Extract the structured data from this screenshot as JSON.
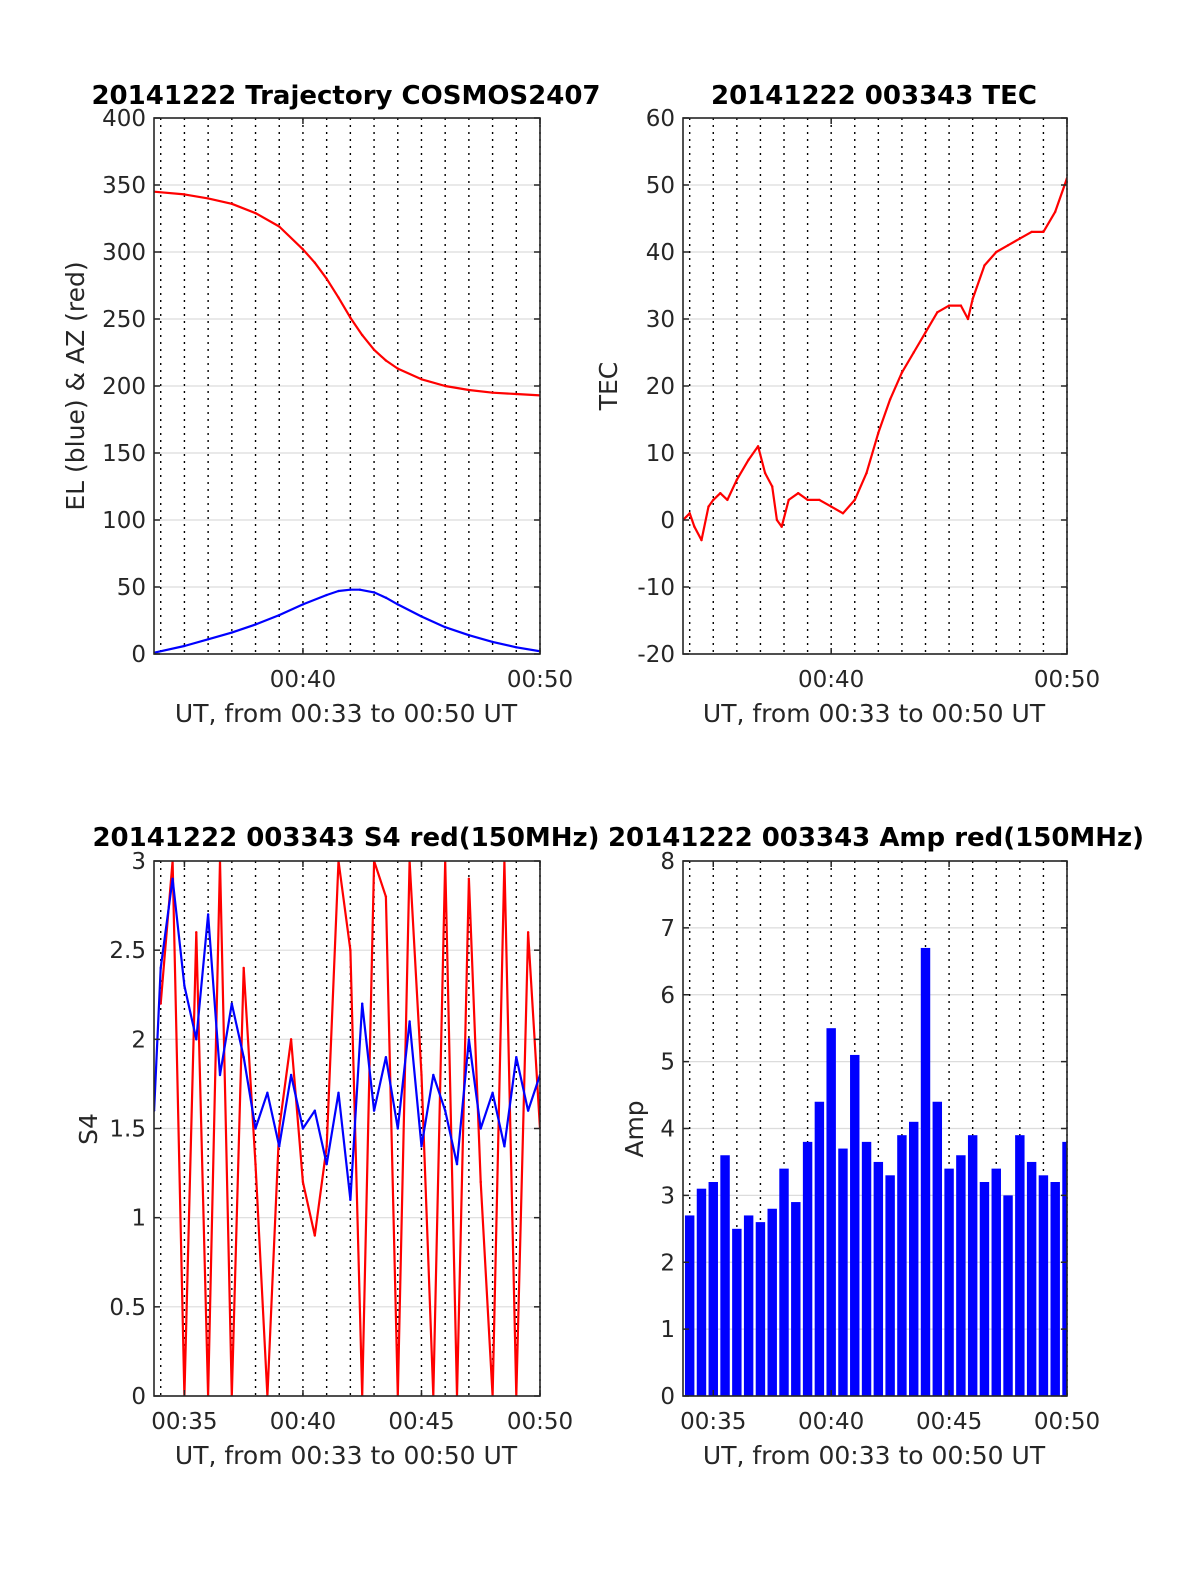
{
  "colors": {
    "red": "#ff0000",
    "blue": "#0000ff",
    "grid": "#dcdcdc",
    "axis": "#262626"
  },
  "chart_data": [
    {
      "type": "line",
      "title": "20141222 Trajectory COSMOS2407",
      "xlabel": "UT, from 00:33 to 00:50 UT",
      "ylabel": "EL (blue) & AZ (red)",
      "xlim": [
        "00:33:43",
        "00:50:00"
      ],
      "ylim": [
        0,
        400
      ],
      "yticks": [
        0,
        50,
        100,
        150,
        200,
        250,
        300,
        350,
        400
      ],
      "ytick_labels": [
        "0",
        "50",
        "100",
        "150",
        "200",
        "250",
        "300",
        "350",
        "400"
      ],
      "xticks": [
        "00:40",
        "00:50"
      ],
      "xtick_labels": [
        "00:40",
        "00:50"
      ],
      "x_units": "minutes after 00:00 UT",
      "grid": true,
      "series": [
        {
          "color": "#ff0000",
          "x": [
            33.72,
            35,
            36,
            37,
            38,
            39,
            40,
            40.5,
            41,
            41.5,
            42,
            42.5,
            43,
            43.5,
            44,
            45,
            46,
            47,
            48,
            49,
            50
          ],
          "values": [
            345,
            343,
            340,
            336,
            329,
            319,
            302,
            292,
            280,
            266,
            251,
            238,
            227,
            219,
            213,
            205,
            200,
            197,
            195,
            194,
            193
          ]
        },
        {
          "color": "#0000ff",
          "x": [
            33.72,
            35,
            36,
            37,
            38,
            39,
            40,
            41,
            41.5,
            42,
            42.4,
            43,
            43.5,
            44,
            45,
            46,
            47,
            48,
            49,
            50
          ],
          "values": [
            1,
            6,
            11,
            16,
            22,
            29,
            37,
            44,
            47,
            48,
            48,
            46,
            42,
            37,
            28,
            20,
            14,
            9,
            5,
            2
          ]
        }
      ]
    },
    {
      "type": "line",
      "title": "20141222 003343 TEC",
      "xlabel": "UT, from 00:33 to 00:50 UT",
      "ylabel": "TEC",
      "xlim": [
        "00:33:43",
        "00:50:00"
      ],
      "ylim": [
        -20,
        60
      ],
      "yticks": [
        -20,
        -10,
        0,
        10,
        20,
        30,
        40,
        50,
        60
      ],
      "ytick_labels": [
        "-20",
        "-10",
        "0",
        "10",
        "20",
        "30",
        "40",
        "50",
        "60"
      ],
      "xticks": [
        "00:40",
        "00:50"
      ],
      "xtick_labels": [
        "00:40",
        "00:50"
      ],
      "x_units": "minutes after 00:00 UT",
      "grid": true,
      "series": [
        {
          "color": "#ff0000",
          "x": [
            33.72,
            34.0,
            34.2,
            34.5,
            34.8,
            35.0,
            35.3,
            35.6,
            36.0,
            36.5,
            36.9,
            37.2,
            37.5,
            37.7,
            37.9,
            38.2,
            38.6,
            39.0,
            39.5,
            40.0,
            40.5,
            41.0,
            41.5,
            42.0,
            42.5,
            43.0,
            43.5,
            44.0,
            44.5,
            45.0,
            45.5,
            45.8,
            46.0,
            46.5,
            47.0,
            47.5,
            48.0,
            48.5,
            49.0,
            49.5,
            50.0
          ],
          "values": [
            0,
            1,
            -1,
            -3,
            2,
            3,
            4,
            3,
            6,
            9,
            11,
            7,
            5,
            0,
            -1,
            3,
            4,
            3,
            3,
            2,
            1,
            3,
            7,
            13,
            18,
            22,
            25,
            28,
            31,
            32,
            32,
            30,
            33,
            38,
            40,
            41,
            42,
            43,
            43,
            46,
            51
          ]
        }
      ]
    },
    {
      "type": "line",
      "title": "20141222 003343 S4 red(150MHz)",
      "xlabel": "UT, from 00:33 to 00:50 UT",
      "ylabel": "S4",
      "xlim": [
        "00:33:43",
        "00:50:00"
      ],
      "ylim": [
        0,
        3
      ],
      "yticks": [
        0,
        0.5,
        1,
        1.5,
        2,
        2.5,
        3
      ],
      "ytick_labels": [
        "0",
        "0.5",
        "1",
        "1.5",
        "2",
        "2.5",
        "3"
      ],
      "xticks": [
        "00:35",
        "00:40",
        "00:45",
        "00:50"
      ],
      "xtick_labels": [
        "00:35",
        "00:40",
        "00:45",
        "00:50"
      ],
      "x_units": "minutes after 00:00 UT",
      "grid": true,
      "series": [
        {
          "color": "#ff0000",
          "x": [
            34.0,
            34.5,
            35.0,
            35.5,
            36.0,
            36.5,
            37.0,
            37.5,
            38.0,
            38.5,
            39.0,
            39.5,
            40.0,
            40.5,
            41.0,
            41.5,
            42.0,
            42.5,
            43.0,
            43.5,
            44.0,
            44.5,
            45.0,
            45.5,
            46.0,
            46.5,
            47.0,
            47.5,
            48.0,
            48.5,
            49.0,
            49.5,
            50.0
          ],
          "values": [
            2.2,
            3.0,
            0.0,
            2.6,
            0.0,
            3.0,
            0.0,
            2.4,
            1.3,
            0.0,
            1.5,
            2.0,
            1.2,
            0.9,
            1.4,
            3.0,
            2.5,
            0.0,
            3.0,
            2.8,
            0.0,
            3.0,
            1.8,
            0.0,
            3.0,
            0.0,
            2.9,
            1.2,
            0.0,
            3.0,
            0.0,
            2.6,
            1.5
          ]
        },
        {
          "color": "#0000ff",
          "x": [
            33.72,
            34.0,
            34.5,
            35.0,
            35.5,
            36.0,
            36.5,
            37.0,
            37.5,
            38.0,
            38.5,
            39.0,
            39.5,
            40.0,
            40.5,
            41.0,
            41.5,
            42.0,
            42.5,
            43.0,
            43.5,
            44.0,
            44.5,
            45.0,
            45.5,
            46.0,
            46.5,
            47.0,
            47.5,
            48.0,
            48.5,
            49.0,
            49.5,
            50.0
          ],
          "values": [
            1.6,
            2.4,
            2.9,
            2.3,
            2.0,
            2.7,
            1.8,
            2.2,
            1.9,
            1.5,
            1.7,
            1.4,
            1.8,
            1.5,
            1.6,
            1.3,
            1.7,
            1.1,
            2.2,
            1.6,
            1.9,
            1.5,
            2.1,
            1.4,
            1.8,
            1.6,
            1.3,
            2.0,
            1.5,
            1.7,
            1.4,
            1.9,
            1.6,
            1.8
          ]
        }
      ]
    },
    {
      "type": "bar",
      "title": "20141222 003343 Amp red(150MHz)",
      "xlabel": "UT, from 00:33 to 00:50 UT",
      "ylabel": "Amp",
      "xlim": [
        "00:33:43",
        "00:50:00"
      ],
      "ylim": [
        0,
        8
      ],
      "yticks": [
        0,
        1,
        2,
        3,
        4,
        5,
        6,
        7,
        8
      ],
      "ytick_labels": [
        "0",
        "1",
        "2",
        "3",
        "4",
        "5",
        "6",
        "7",
        "8"
      ],
      "xticks": [
        "00:35",
        "00:40",
        "00:45",
        "00:50"
      ],
      "xtick_labels": [
        "00:35",
        "00:40",
        "00:45",
        "00:50"
      ],
      "x_units": "minutes after 00:00 UT",
      "grid": true,
      "series": [
        {
          "color": "#0000ff",
          "x": [
            34.0,
            34.5,
            35.0,
            35.5,
            36.0,
            36.5,
            37.0,
            37.5,
            38.0,
            38.5,
            39.0,
            39.5,
            40.0,
            40.5,
            41.0,
            41.5,
            42.0,
            42.5,
            43.0,
            43.5,
            44.0,
            44.5,
            45.0,
            45.5,
            46.0,
            46.5,
            47.0,
            47.5,
            48.0,
            48.5,
            49.0,
            49.5,
            50.0
          ],
          "values": [
            2.7,
            3.1,
            3.2,
            3.6,
            2.5,
            2.7,
            2.6,
            2.8,
            3.4,
            2.9,
            3.8,
            4.4,
            5.5,
            3.7,
            5.1,
            3.8,
            3.5,
            3.3,
            3.9,
            4.1,
            6.7,
            4.4,
            3.4,
            3.6,
            3.9,
            3.2,
            3.4,
            3.0,
            3.9,
            3.5,
            3.3,
            3.2,
            3.8
          ]
        }
      ]
    }
  ]
}
